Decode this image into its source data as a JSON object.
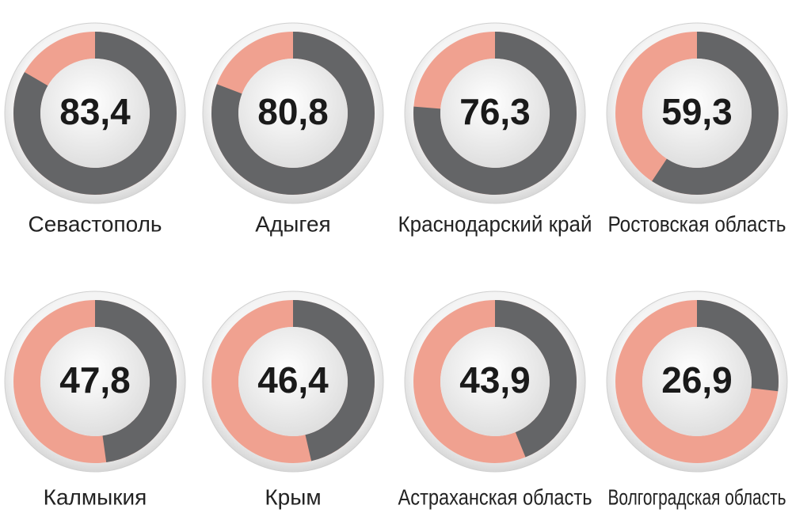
{
  "chart_data": {
    "type": "donut",
    "categories": [
      "Севастополь",
      "Адыгея",
      "Краснодарский край",
      "Ростовская область",
      "Калмыкия",
      "Крым",
      "Астраханская область",
      "Волгоградская область"
    ],
    "values": [
      83.4,
      80.8,
      76.3,
      59.3,
      47.8,
      46.4,
      43.9,
      26.9
    ],
    "value_labels": [
      "83,4",
      "80,8",
      "76,3",
      "59,3",
      "47,8",
      "46,4",
      "43,9",
      "26,9"
    ],
    "ylim": [
      0,
      100
    ],
    "color": "#646567",
    "rest_color": "#f0a190"
  }
}
